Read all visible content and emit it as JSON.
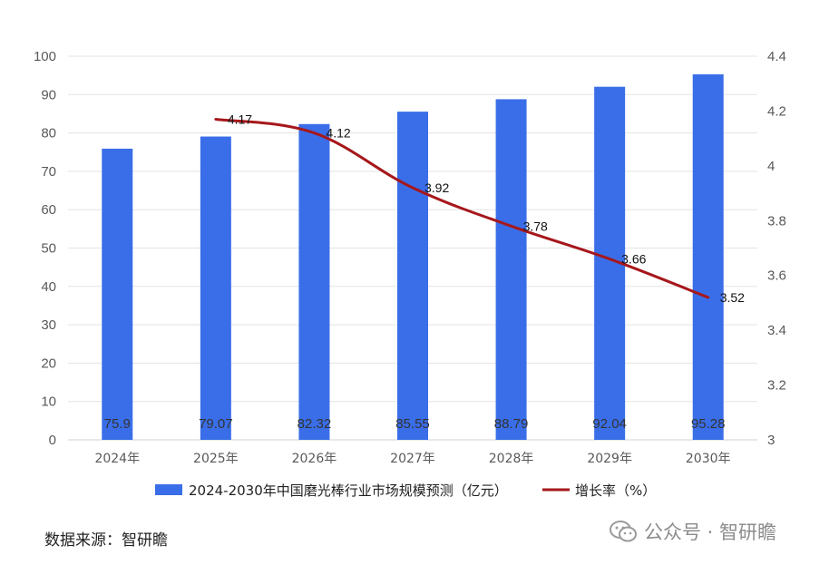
{
  "chart_data": {
    "type": "bar",
    "categories": [
      "2024年",
      "2025年",
      "2026年",
      "2027年",
      "2028年",
      "2029年",
      "2030年"
    ],
    "series": [
      {
        "name": "2024-2030年中国磨光棒行业市场规模预测（亿元）",
        "type": "bar",
        "axis": "left",
        "values": [
          75.9,
          79.07,
          82.32,
          85.55,
          88.79,
          92.04,
          95.28
        ],
        "labels": [
          "75.9",
          "79.07",
          "82.32",
          "85.55",
          "88.79",
          "92.04",
          "95.28"
        ],
        "color": "#3a6ee8"
      },
      {
        "name": "增长率（%）",
        "type": "line",
        "axis": "right",
        "values": [
          null,
          4.17,
          4.12,
          3.92,
          3.78,
          3.66,
          3.52
        ],
        "labels": [
          "",
          "4.17",
          "4.12",
          "3.92",
          "3.78",
          "3.66",
          "3.52"
        ],
        "color": "#a6171b"
      }
    ],
    "y_left": {
      "min": 0,
      "max": 100,
      "step": 10,
      "ticks": [
        "0",
        "10",
        "20",
        "30",
        "40",
        "50",
        "60",
        "70",
        "80",
        "90",
        "100"
      ]
    },
    "y_right": {
      "min": 3,
      "max": 4.4,
      "step": 0.2,
      "ticks": [
        "3",
        "3.2",
        "3.4",
        "3.6",
        "3.8",
        "4",
        "4.2",
        "4.4"
      ]
    },
    "grid": true,
    "legend_position": "bottom"
  },
  "footer": {
    "source": "数据来源：智研瞻",
    "watermark": "公众号 · 智研瞻"
  }
}
